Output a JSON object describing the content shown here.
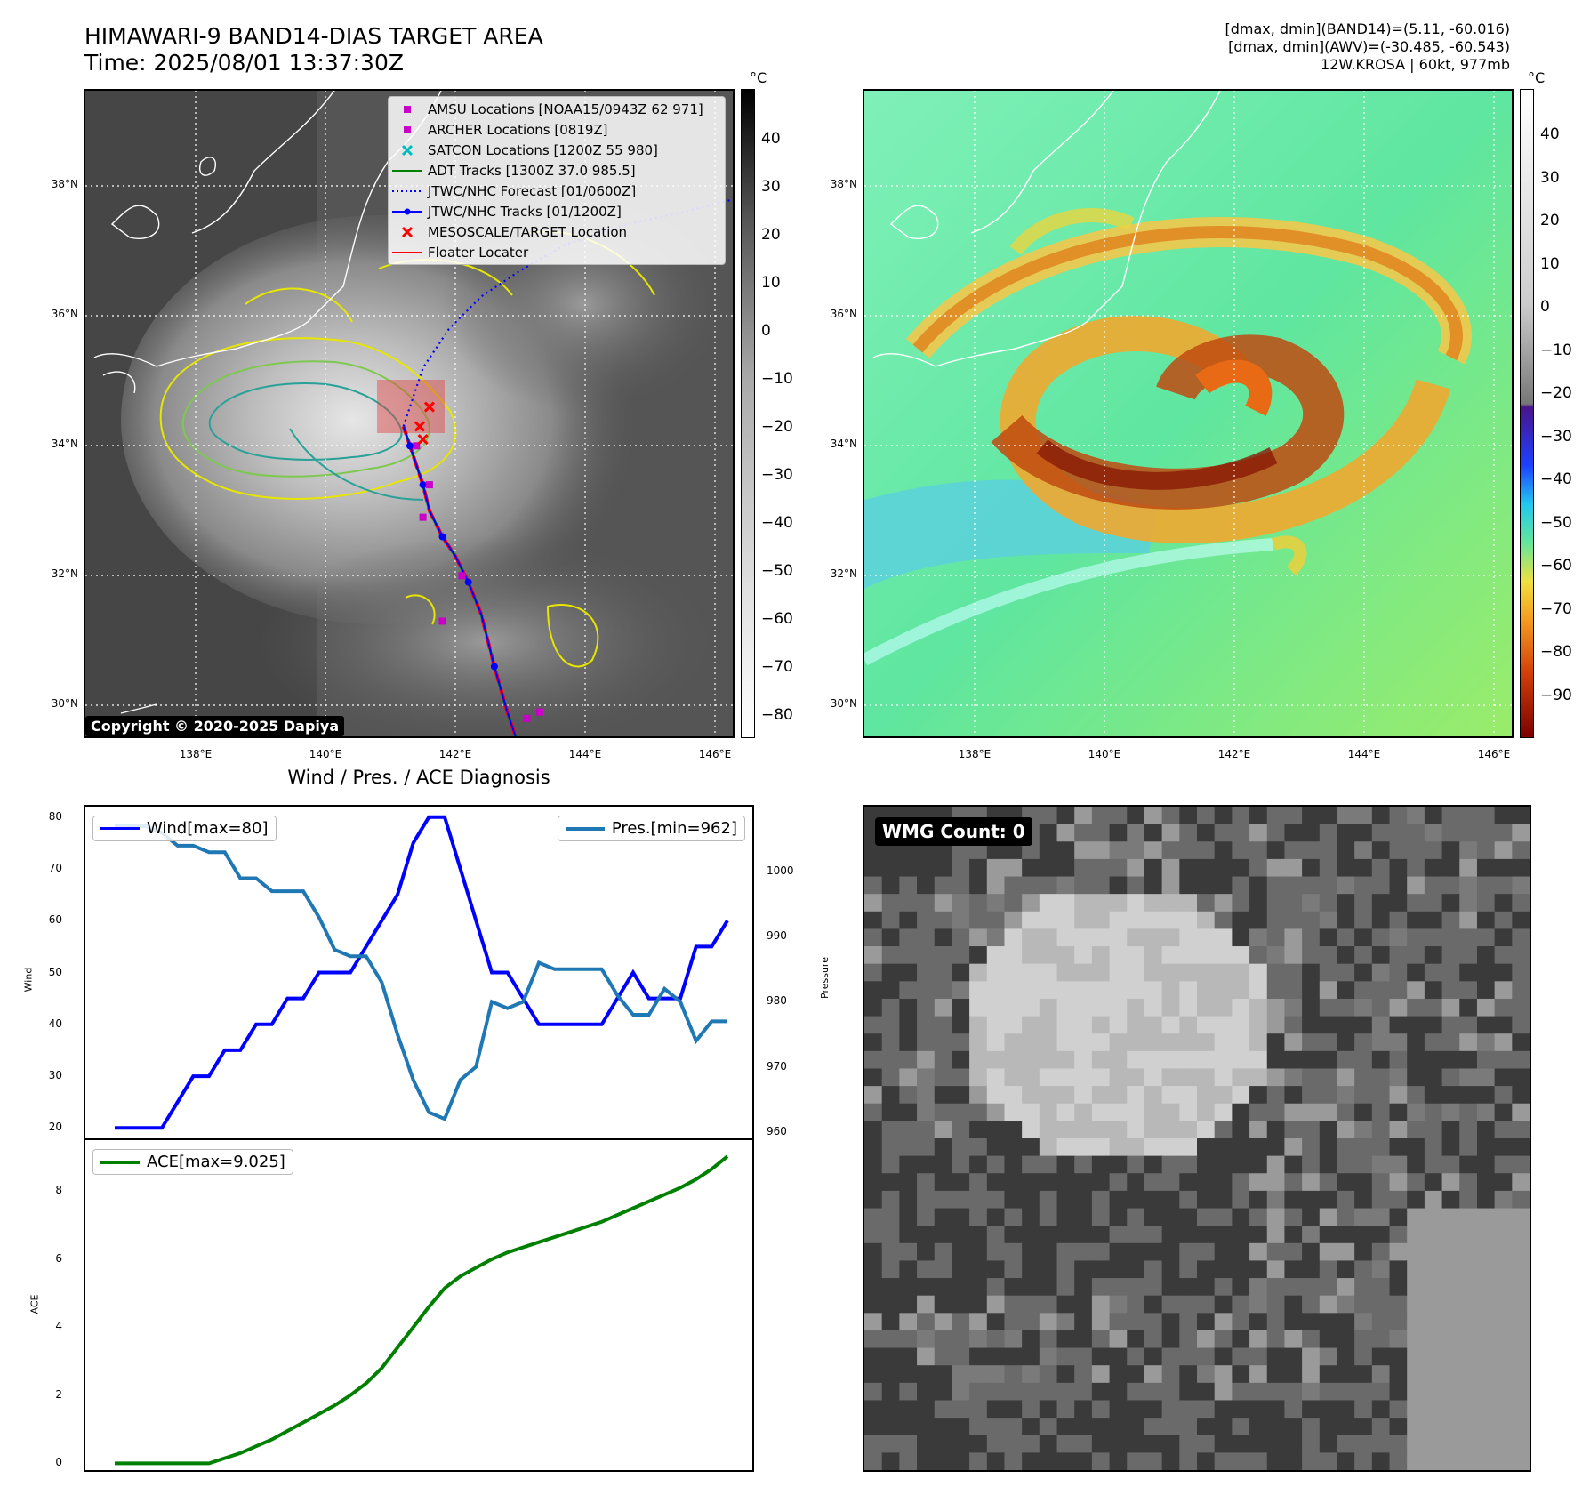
{
  "header": {
    "title_line1": "HIMAWARI-9 BAND14-DIAS TARGET AREA",
    "title_line2": "Time: 2025/08/01 13:37:30Z",
    "right_line1": "[dmax, dmin](BAND14)=(5.11, -60.016)",
    "right_line2": "[dmax, dmin](AWV)=(-30.485, -60.543)",
    "right_line3": "12W.KROSA | 60kt, 977mb"
  },
  "maps": {
    "lat_ticks": [
      "38°N",
      "36°N",
      "34°N",
      "32°N",
      "30°N"
    ],
    "lon_ticks": [
      "138°E",
      "140°E",
      "142°E",
      "144°E",
      "146°E"
    ],
    "colorbar_unit": "°C",
    "ir_colorbar_ticks": [
      "40",
      "30",
      "20",
      "10",
      "0",
      "−10",
      "−20",
      "−30",
      "−40",
      "−50",
      "−60",
      "−70",
      "−80"
    ],
    "wv_colorbar_ticks": [
      "40",
      "30",
      "20",
      "10",
      "0",
      "−10",
      "−20",
      "−30",
      "−40",
      "−50",
      "−60",
      "−70",
      "−80",
      "−90"
    ],
    "copyright": "Copyright © 2020-2025 Dapiya",
    "legend": [
      {
        "label": "AMSU Locations [NOAA15/0943Z 62 971]",
        "color": "#c800c8",
        "symbol": "square"
      },
      {
        "label": "ARCHER Locations [0819Z]",
        "color": "#c800c8",
        "symbol": "square"
      },
      {
        "label": "SATCON Locations [1200Z 55 980]",
        "color": "#00bdbd",
        "symbol": "x"
      },
      {
        "label": "ADT Tracks [1300Z 37.0 985.5]",
        "color": "#008000",
        "symbol": "line"
      },
      {
        "label": "JTWC/NHC Forecast [01/0600Z]",
        "color": "#0000ff",
        "symbol": "dotted"
      },
      {
        "label": "JTWC/NHC Tracks [01/1200Z]",
        "color": "#0000ff",
        "symbol": "line-dot"
      },
      {
        "label": "MESOSCALE/TARGET Location",
        "color": "#ff0000",
        "symbol": "x"
      },
      {
        "label": "Floater Locater",
        "color": "#ff0000",
        "symbol": "line"
      }
    ],
    "track": {
      "jtwc_lon": [
        143.0,
        142.8,
        142.6,
        142.4,
        142.2,
        142.0,
        141.8,
        141.6,
        141.5,
        141.4,
        141.3,
        141.2
      ],
      "jtwc_lat": [
        29.5,
        30.1,
        30.8,
        31.6,
        32.1,
        32.5,
        32.8,
        33.2,
        33.6,
        33.9,
        34.2,
        34.5
      ],
      "forecast_lon": [
        141.2,
        141.5,
        141.9,
        142.4,
        143.0,
        143.7,
        144.6,
        145.5,
        146.3
      ],
      "forecast_lat": [
        34.5,
        35.4,
        36.0,
        36.5,
        36.9,
        37.3,
        37.6,
        37.8,
        38.0
      ]
    }
  },
  "chart_data": [
    {
      "type": "line",
      "title": "Wind / Pres. / ACE Diagnosis",
      "ylabel": "Wind",
      "ylim": [
        18,
        82
      ],
      "series": [
        {
          "name": "Wind[max=80]",
          "color": "#0000ff",
          "axis": "left",
          "values": [
            20,
            20,
            20,
            20,
            25,
            30,
            30,
            35,
            35,
            40,
            40,
            45,
            45,
            50,
            50,
            50,
            55,
            60,
            65,
            75,
            80,
            80,
            70,
            60,
            50,
            50,
            45,
            40,
            40,
            40,
            40,
            40,
            45,
            50,
            45,
            45,
            45,
            55,
            55,
            60
          ]
        },
        {
          "name": "Pres.[min=962]",
          "color": "#1f77b4",
          "axis": "right",
          "values": [
            1007,
            1007,
            1007,
            1006,
            1004,
            1004,
            1003,
            1003,
            999,
            999,
            997,
            997,
            997,
            993,
            988,
            987,
            987,
            983,
            975,
            968,
            963,
            962,
            968,
            970,
            980,
            979,
            980,
            986,
            985,
            985,
            985,
            985,
            981,
            978,
            978,
            982,
            980,
            974,
            977,
            977
          ]
        }
      ],
      "ylabel_right": "Pressure",
      "ylim_right": [
        959,
        1010
      ],
      "left_ticks": [
        20,
        30,
        40,
        50,
        60,
        70,
        80
      ],
      "right_ticks": [
        960,
        970,
        980,
        990,
        1000
      ]
    },
    {
      "type": "line",
      "ylabel": "ACE",
      "ylim": [
        -0.2,
        9.5
      ],
      "series": [
        {
          "name": "ACE[max=9.025]",
          "color": "#008000",
          "values": [
            0,
            0,
            0,
            0,
            0,
            0,
            0,
            0.15,
            0.3,
            0.5,
            0.7,
            0.95,
            1.2,
            1.45,
            1.7,
            2.0,
            2.35,
            2.8,
            3.4,
            4.0,
            4.6,
            5.15,
            5.5,
            5.75,
            6.0,
            6.2,
            6.35,
            6.5,
            6.65,
            6.8,
            6.95,
            7.1,
            7.3,
            7.5,
            7.7,
            7.9,
            8.1,
            8.35,
            8.65,
            9.025
          ]
        }
      ],
      "ticks": [
        0,
        2,
        4,
        6,
        8
      ]
    }
  ],
  "wmg": {
    "label": "WMG Count: 0"
  }
}
